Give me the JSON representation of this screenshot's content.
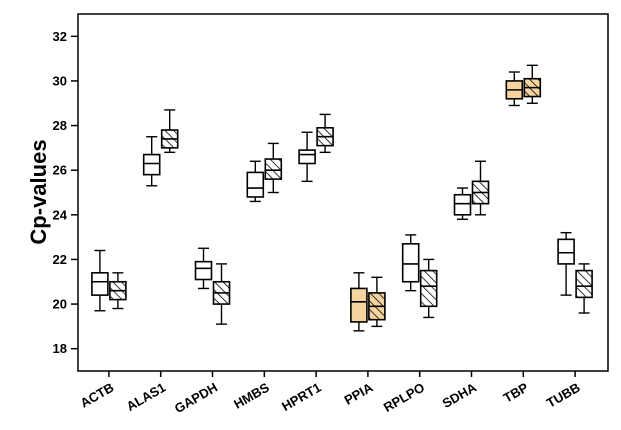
{
  "chart_data": {
    "type": "box",
    "ylabel": "Cp-values",
    "ylim": [
      17,
      33
    ],
    "yticks": [
      18,
      20,
      22,
      24,
      26,
      28,
      30,
      32
    ],
    "categories": [
      "ACTB",
      "ALAS1",
      "GAPDH",
      "HMBS",
      "HPRT1",
      "PPIA",
      "RPLPO",
      "SDHA",
      "TBP",
      "TUBB"
    ],
    "highlight_categories": [
      "PPIA",
      "TBP"
    ],
    "colors": {
      "highlight_fill": "#f5d4a0",
      "box_fill": "#ffffff",
      "stroke": "#000000"
    },
    "series": [
      {
        "pattern": "open",
        "boxes": [
          {
            "min": 19.7,
            "q1": 20.4,
            "median": 21.0,
            "q3": 21.4,
            "max": 22.4
          },
          {
            "min": 25.3,
            "q1": 25.8,
            "median": 26.3,
            "q3": 26.7,
            "max": 27.5
          },
          {
            "min": 20.7,
            "q1": 21.1,
            "median": 21.6,
            "q3": 21.9,
            "max": 22.5
          },
          {
            "min": 24.6,
            "q1": 24.8,
            "median": 25.2,
            "q3": 25.9,
            "max": 26.4
          },
          {
            "min": 25.5,
            "q1": 26.3,
            "median": 26.7,
            "q3": 26.9,
            "max": 27.7
          },
          {
            "min": 18.8,
            "q1": 19.2,
            "median": 20.1,
            "q3": 20.7,
            "max": 21.4
          },
          {
            "min": 20.6,
            "q1": 21.0,
            "median": 21.8,
            "q3": 22.7,
            "max": 23.1
          },
          {
            "min": 23.8,
            "q1": 24.0,
            "median": 24.5,
            "q3": 24.9,
            "max": 25.2
          },
          {
            "min": 28.9,
            "q1": 29.2,
            "median": 29.6,
            "q3": 30.0,
            "max": 30.4
          },
          {
            "min": 20.4,
            "q1": 21.8,
            "median": 22.3,
            "q3": 22.9,
            "max": 23.2
          }
        ]
      },
      {
        "pattern": "hatched",
        "boxes": [
          {
            "min": 19.8,
            "q1": 20.2,
            "median": 20.6,
            "q3": 21.0,
            "max": 21.4
          },
          {
            "min": 26.8,
            "q1": 27.0,
            "median": 27.4,
            "q3": 27.8,
            "max": 28.7
          },
          {
            "min": 19.1,
            "q1": 20.0,
            "median": 20.5,
            "q3": 21.0,
            "max": 21.8
          },
          {
            "min": 25.0,
            "q1": 25.6,
            "median": 26.0,
            "q3": 26.5,
            "max": 27.2
          },
          {
            "min": 26.8,
            "q1": 27.1,
            "median": 27.5,
            "q3": 27.9,
            "max": 28.5
          },
          {
            "min": 19.0,
            "q1": 19.3,
            "median": 19.9,
            "q3": 20.5,
            "max": 21.2
          },
          {
            "min": 19.4,
            "q1": 19.9,
            "median": 20.8,
            "q3": 21.5,
            "max": 22.0
          },
          {
            "min": 24.0,
            "q1": 24.5,
            "median": 25.0,
            "q3": 25.5,
            "max": 26.4
          },
          {
            "min": 29.0,
            "q1": 29.3,
            "median": 29.7,
            "q3": 30.1,
            "max": 30.7
          },
          {
            "min": 19.6,
            "q1": 20.3,
            "median": 20.8,
            "q3": 21.5,
            "max": 21.8
          }
        ]
      }
    ]
  }
}
